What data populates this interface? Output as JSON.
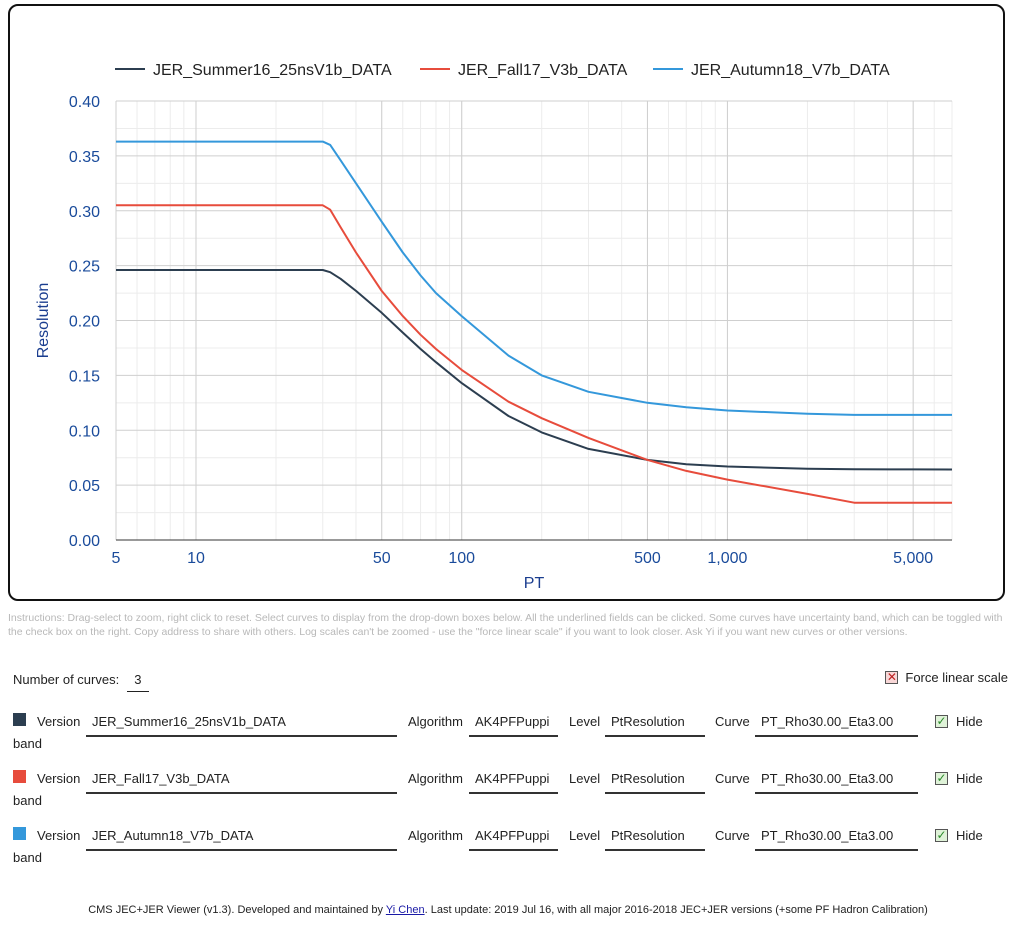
{
  "chart_data": {
    "type": "line",
    "x_scale": "log",
    "y_scale": "linear",
    "xlim": [
      5,
      7000
    ],
    "ylim": [
      0.0,
      0.4
    ],
    "xlabel": "PT",
    "ylabel": "Resolution",
    "x_ticks": [
      5,
      10,
      50,
      100,
      500,
      1000,
      5000
    ],
    "x_tick_labels": [
      "5",
      "10",
      "50",
      "100",
      "500",
      "1,000",
      "5,000"
    ],
    "y_ticks": [
      0.0,
      0.05,
      0.1,
      0.15,
      0.2,
      0.25,
      0.3,
      0.35,
      0.4
    ],
    "y_tick_labels": [
      "0.00",
      "0.05",
      "0.10",
      "0.15",
      "0.20",
      "0.25",
      "0.30",
      "0.35",
      "0.40"
    ],
    "grid": true,
    "legend_position": "top",
    "series": [
      {
        "name": "JER_Summer16_25nsV1b_DATA",
        "color": "#2c3e50",
        "x": [
          5,
          10,
          20,
          29,
          30,
          32,
          35,
          40,
          50,
          60,
          70,
          80,
          100,
          150,
          200,
          300,
          500,
          700,
          1000,
          2000,
          3000,
          5000,
          7000
        ],
        "y": [
          0.246,
          0.246,
          0.246,
          0.246,
          0.246,
          0.244,
          0.238,
          0.227,
          0.207,
          0.189,
          0.174,
          0.162,
          0.143,
          0.113,
          0.098,
          0.083,
          0.073,
          0.069,
          0.067,
          0.065,
          0.0645,
          0.0643,
          0.0642
        ]
      },
      {
        "name": "JER_Fall17_V3b_DATA",
        "color": "#e74c3c",
        "x": [
          5,
          10,
          20,
          29,
          30,
          32,
          35,
          40,
          50,
          60,
          70,
          80,
          100,
          150,
          200,
          300,
          500,
          700,
          1000,
          2000,
          3000,
          5000,
          7000
        ],
        "y": [
          0.305,
          0.305,
          0.305,
          0.305,
          0.305,
          0.301,
          0.285,
          0.262,
          0.227,
          0.204,
          0.187,
          0.174,
          0.155,
          0.126,
          0.111,
          0.093,
          0.073,
          0.063,
          0.055,
          0.042,
          0.034,
          0.034,
          0.034
        ]
      },
      {
        "name": "JER_Autumn18_V7b_DATA",
        "color": "#3498db",
        "x": [
          5,
          10,
          20,
          29,
          30,
          32,
          35,
          40,
          50,
          60,
          70,
          80,
          100,
          150,
          200,
          300,
          500,
          700,
          1000,
          2000,
          3000,
          5000,
          7000
        ],
        "y": [
          0.363,
          0.363,
          0.363,
          0.363,
          0.363,
          0.36,
          0.346,
          0.325,
          0.29,
          0.262,
          0.241,
          0.225,
          0.204,
          0.168,
          0.15,
          0.135,
          0.125,
          0.121,
          0.118,
          0.115,
          0.114,
          0.114,
          0.114
        ]
      }
    ]
  },
  "instructions": "Instructions: Drag-select to zoom, right click to reset. Select curves to display from the drop-down boxes below. All the underlined fields can be clicked. Some curves have uncertainty band, which can be toggled with the check box on the right. Copy address to share with others. Log scales can't be zoomed - use the \"force linear scale\" if you want to look closer. Ask Yi if you want new curves or other versions.",
  "controls": {
    "num_curves_label": "Number of curves:",
    "num_curves_value": "3",
    "force_linear_label": "Force linear scale",
    "force_linear_checked": false
  },
  "labels": {
    "version": "Version",
    "algorithm": "Algorithm",
    "level": "Level",
    "curve": "Curve",
    "hide": "Hide",
    "band": "band"
  },
  "curves": [
    {
      "color": "#2c3e50",
      "version": "JER_Summer16_25nsV1b_DATA",
      "algorithm": "AK4PFPuppi",
      "level": "PtResolution",
      "curve": "PT_Rho30.00_Eta3.00",
      "hide_band": true
    },
    {
      "color": "#e74c3c",
      "version": "JER_Fall17_V3b_DATA",
      "algorithm": "AK4PFPuppi",
      "level": "PtResolution",
      "curve": "PT_Rho30.00_Eta3.00",
      "hide_band": true
    },
    {
      "color": "#3498db",
      "version": "JER_Autumn18_V7b_DATA",
      "algorithm": "AK4PFPuppi",
      "level": "PtResolution",
      "curve": "PT_Rho30.00_Eta3.00",
      "hide_band": true
    }
  ],
  "footer": {
    "prefix": "CMS JEC+JER Viewer (v1.3). Developed and maintained by ",
    "author": "Yi Chen",
    "suffix": ". Last update: 2019 Jul 16, with all major 2016-2018 JEC+JER versions (+some PF Hadron Calibration)"
  }
}
